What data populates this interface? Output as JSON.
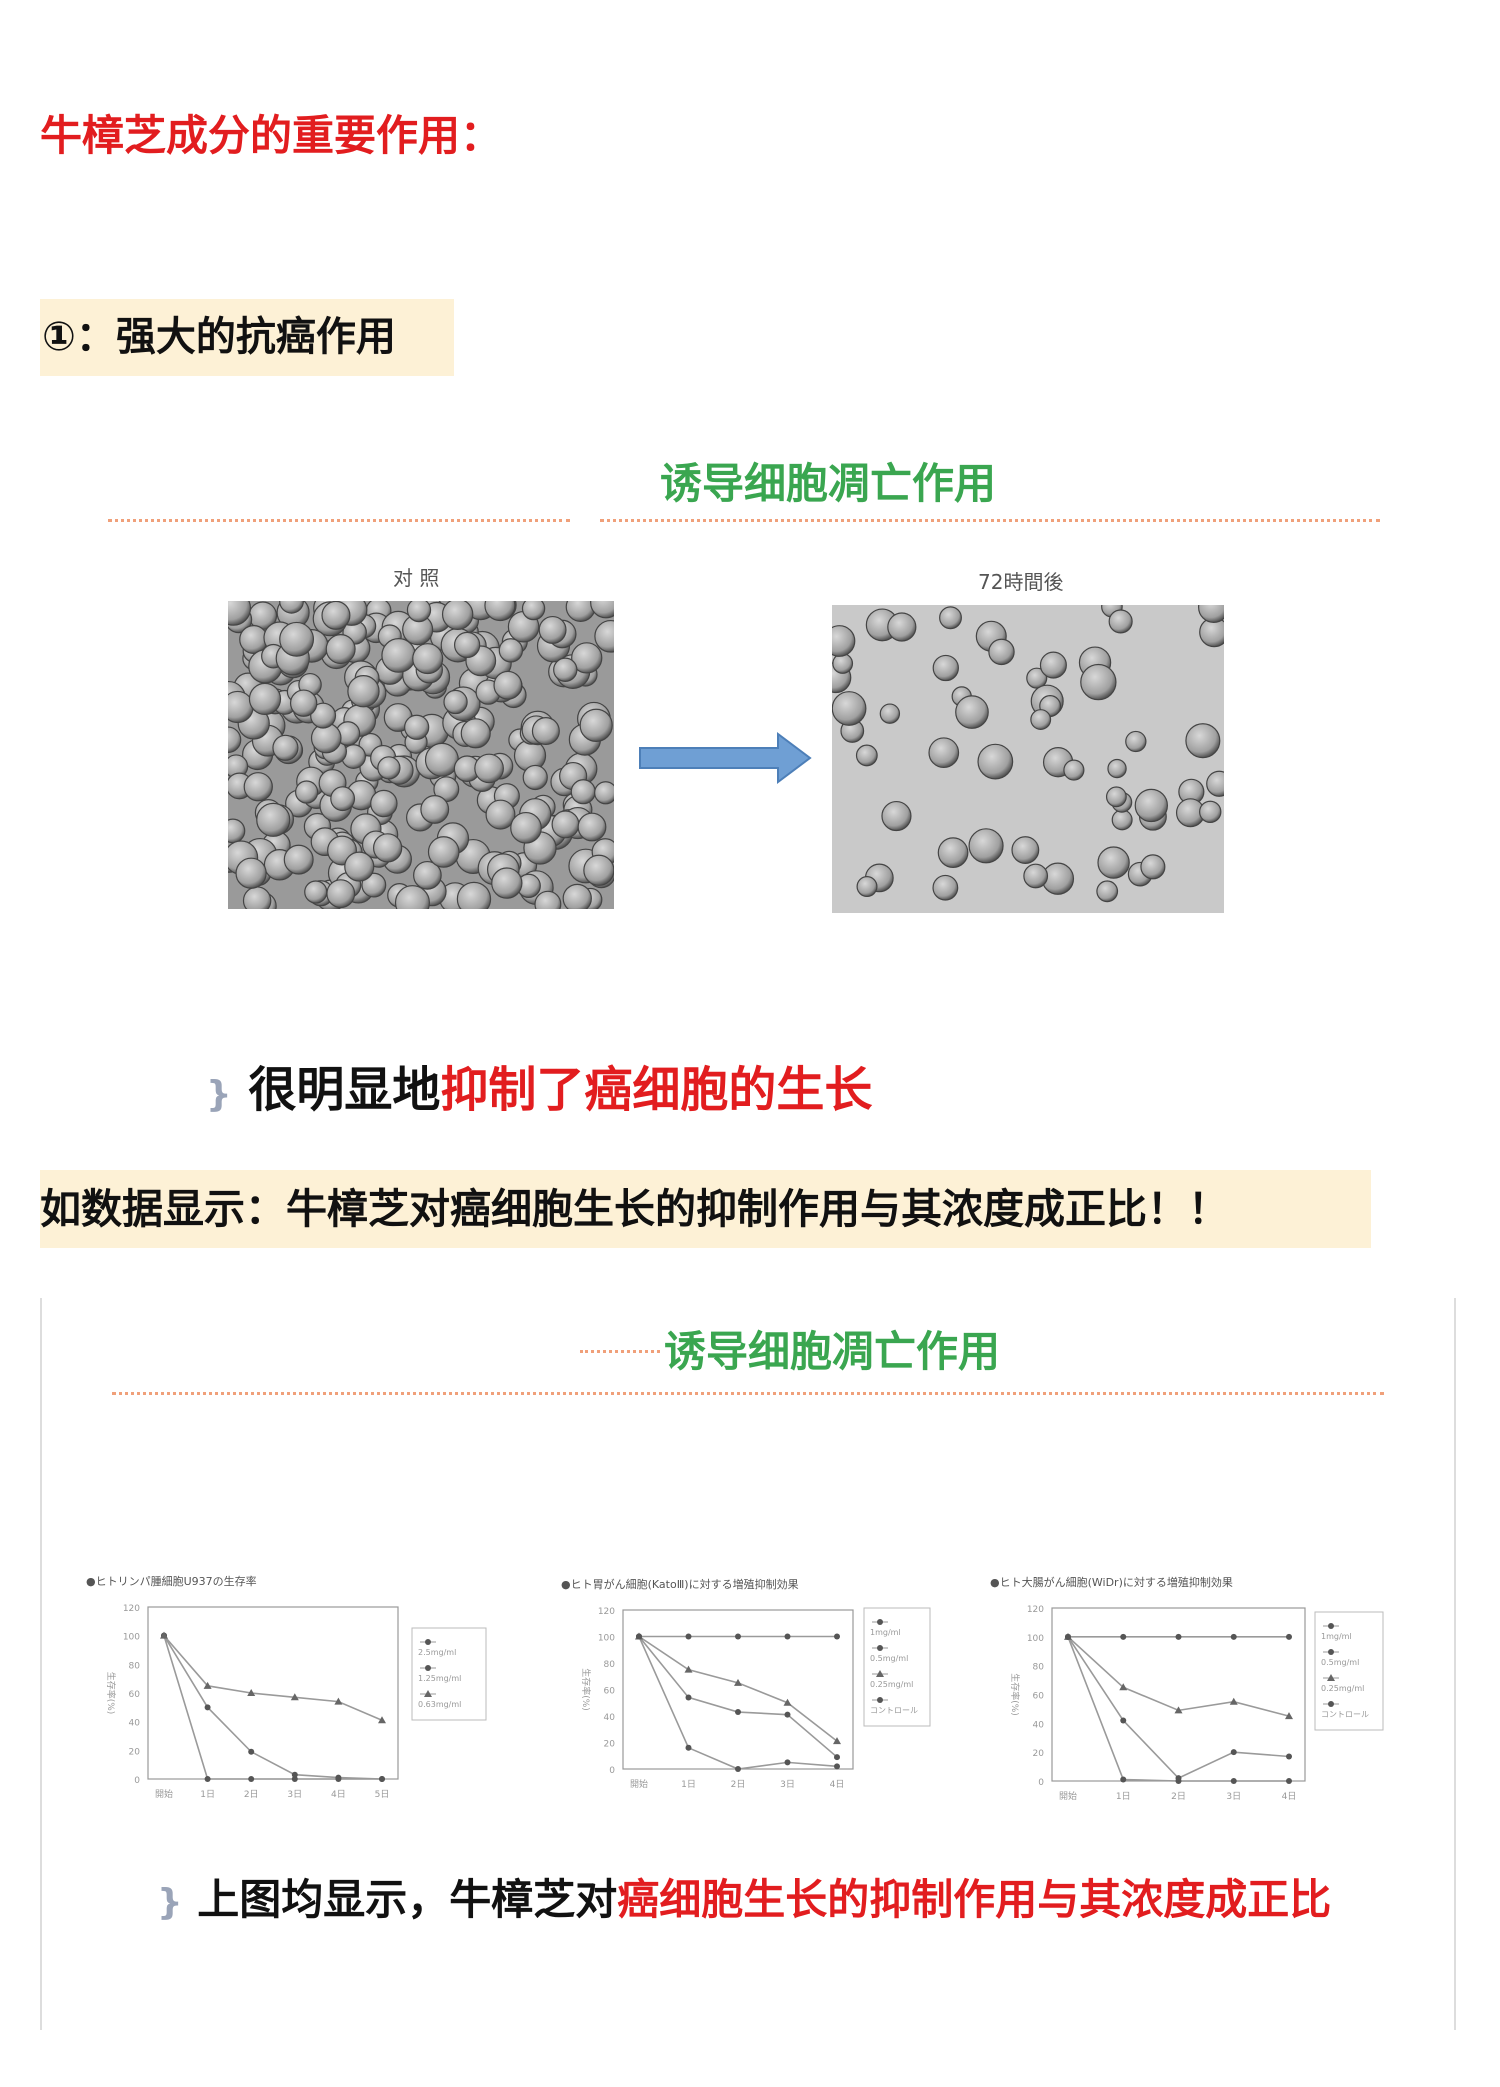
{
  "title": "牛樟芝成分的重要作用：",
  "section1": {
    "heading": "①：强大的抗癌作用",
    "figure_title": "诱导细胞凋亡作用",
    "left_caption": "对 照",
    "right_caption": "72時間後",
    "arrow_color": "#6f9fd4",
    "statement_black": "很明显地",
    "statement_red": "抑制了癌细胞的生长"
  },
  "section2": {
    "heading": "如数据显示：牛樟芝对癌细胞生长的抑制作用与其浓度成正比！！",
    "figure_title": "诱导细胞凋亡作用",
    "statement_black": "上图均显示，牛樟芝对",
    "statement_red": "癌细胞生长的抑制作用与其浓度成正比"
  },
  "colors": {
    "red": "#e21d1f",
    "green": "#3aa650",
    "highlight": "#fdf1d6"
  },
  "chart_data": [
    {
      "type": "line",
      "title": "●ヒトリンパ腫細胞U937の生存率",
      "ylabel": "生存率(%)",
      "ylim": [
        0,
        120
      ],
      "yticks": [
        0,
        20,
        40,
        60,
        80,
        100,
        120
      ],
      "categories": [
        "開始",
        "1日",
        "2日",
        "3日",
        "4日",
        "5日"
      ],
      "legend": "right",
      "series": [
        {
          "name": "2.5mg/ml",
          "marker": "circle",
          "values": [
            100,
            0,
            0,
            0,
            0,
            0
          ]
        },
        {
          "name": "1.25mg/ml",
          "marker": "circle",
          "values": [
            100,
            50,
            19,
            3,
            1,
            0
          ]
        },
        {
          "name": "0.63mg/ml",
          "marker": "triangle",
          "values": [
            100,
            65,
            60,
            57,
            54,
            41
          ]
        }
      ]
    },
    {
      "type": "line",
      "title": "●ヒト胃がん細胞(KatoⅢ)に対する増殖抑制効果",
      "ylabel": "生存率(%)",
      "ylim": [
        0,
        120
      ],
      "yticks": [
        0,
        20,
        40,
        60,
        80,
        100,
        120
      ],
      "categories": [
        "開始",
        "1日",
        "2日",
        "3日",
        "4日"
      ],
      "legend": "right",
      "series": [
        {
          "name": "1mg/ml",
          "marker": "circle",
          "values": [
            100,
            16,
            0,
            5,
            2
          ]
        },
        {
          "name": "0.5mg/ml",
          "marker": "circle",
          "values": [
            100,
            54,
            43,
            41,
            9
          ]
        },
        {
          "name": "0.25mg/ml",
          "marker": "triangle",
          "values": [
            100,
            75,
            65,
            50,
            21
          ]
        },
        {
          "name": "コントロール",
          "marker": "circle",
          "values": [
            100,
            100,
            100,
            100,
            100
          ]
        }
      ]
    },
    {
      "type": "line",
      "title": "●ヒト大腸がん細胞(WiDr)に対する増殖抑制効果",
      "ylabel": "生存率(%)",
      "ylim": [
        0,
        120
      ],
      "yticks": [
        0,
        20,
        40,
        60,
        80,
        100,
        120
      ],
      "categories": [
        "開始",
        "1日",
        "2日",
        "3日",
        "4日"
      ],
      "legend": "right",
      "series": [
        {
          "name": "1mg/ml",
          "marker": "circle",
          "values": [
            100,
            1,
            0,
            0,
            0
          ]
        },
        {
          "name": "0.5mg/ml",
          "marker": "circle",
          "values": [
            100,
            42,
            2,
            20,
            17
          ]
        },
        {
          "name": "0.25mg/ml",
          "marker": "triangle",
          "values": [
            100,
            65,
            49,
            55,
            45
          ]
        },
        {
          "name": "コントロール",
          "marker": "circle",
          "values": [
            100,
            100,
            100,
            100,
            100
          ]
        }
      ]
    }
  ]
}
